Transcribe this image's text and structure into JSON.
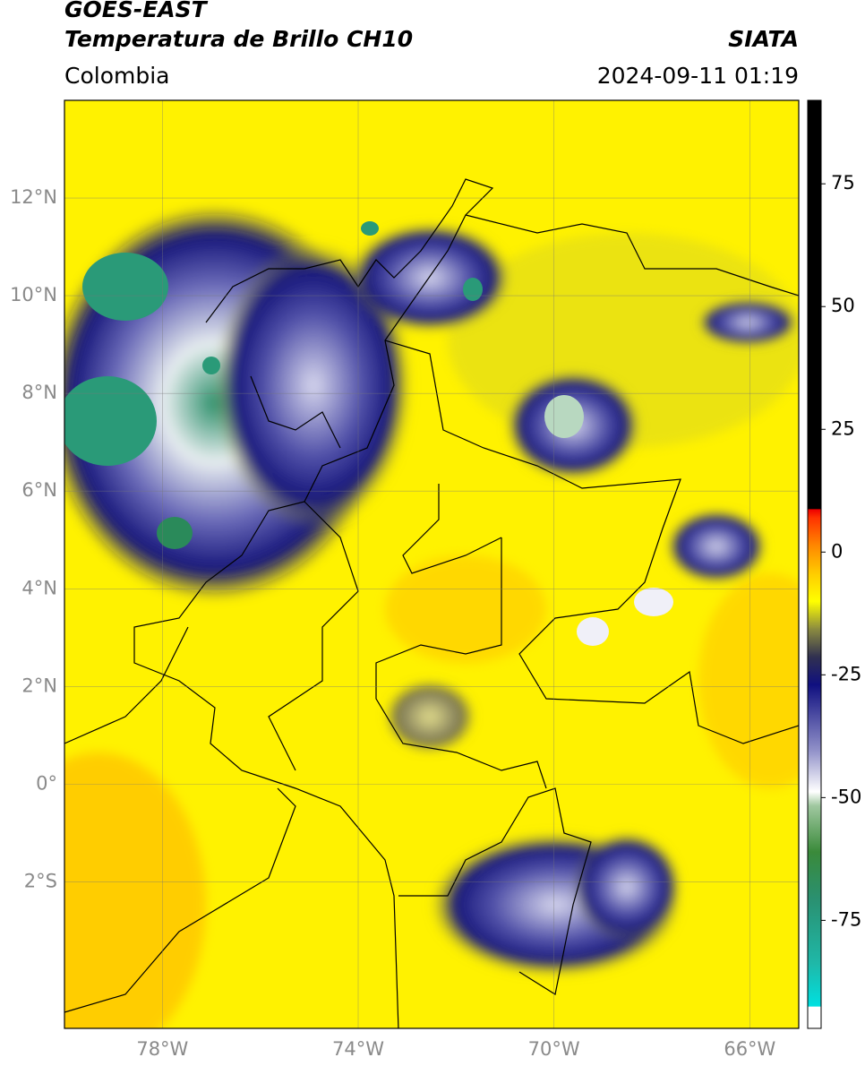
{
  "header": {
    "satellite": "GOES-EAST",
    "product": "Temperatura de Brillo CH10",
    "source": "SIATA",
    "region": "Colombia",
    "datetime": "2024-09-11 01:19"
  },
  "map": {
    "lon_lim": [
      -80,
      -65
    ],
    "lat_lim": [
      -5,
      14
    ],
    "lat_ticks": [
      {
        "value": 12,
        "label": "12°N"
      },
      {
        "value": 10,
        "label": "10°N"
      },
      {
        "value": 8,
        "label": "8°N"
      },
      {
        "value": 6,
        "label": "6°N"
      },
      {
        "value": 4,
        "label": "4°N"
      },
      {
        "value": 2,
        "label": "2°N"
      },
      {
        "value": 0,
        "label": "0°"
      },
      {
        "value": -2,
        "label": "2°S"
      }
    ],
    "lon_ticks": [
      {
        "value": -78,
        "label": "78°W"
      },
      {
        "value": -74,
        "label": "74°W"
      },
      {
        "value": -70,
        "label": "70°W"
      },
      {
        "value": -66,
        "label": "66°W"
      }
    ],
    "grid": true
  },
  "colorbar": {
    "lim": [
      -97,
      92
    ],
    "ticks": [
      75,
      50,
      25,
      0,
      -25,
      -50,
      -75
    ]
  }
}
